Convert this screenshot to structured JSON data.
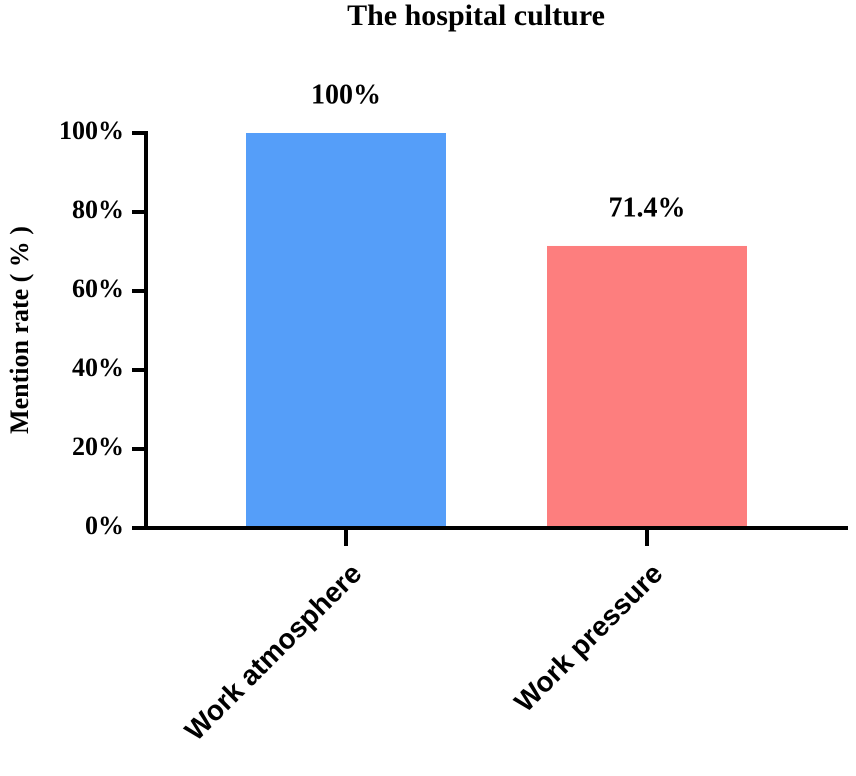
{
  "chart_data": {
    "type": "bar",
    "title": "The hospital culture",
    "y_label": "Mention rate ( % )",
    "categories": [
      "Work atmosphere",
      "Work pressure"
    ],
    "values": [
      100,
      71.4
    ],
    "value_labels": [
      "100%",
      "71.4%"
    ],
    "colors": [
      "#559ef9",
      "#fd7e7e"
    ],
    "ylim": [
      0,
      100
    ],
    "yticks": [
      {
        "value": 0,
        "label": "0%"
      },
      {
        "value": 20,
        "label": "20%"
      },
      {
        "value": 40,
        "label": "40%"
      },
      {
        "value": 60,
        "label": "60%"
      },
      {
        "value": 80,
        "label": "80%"
      },
      {
        "value": 100,
        "label": "100%"
      }
    ],
    "grid": false
  }
}
